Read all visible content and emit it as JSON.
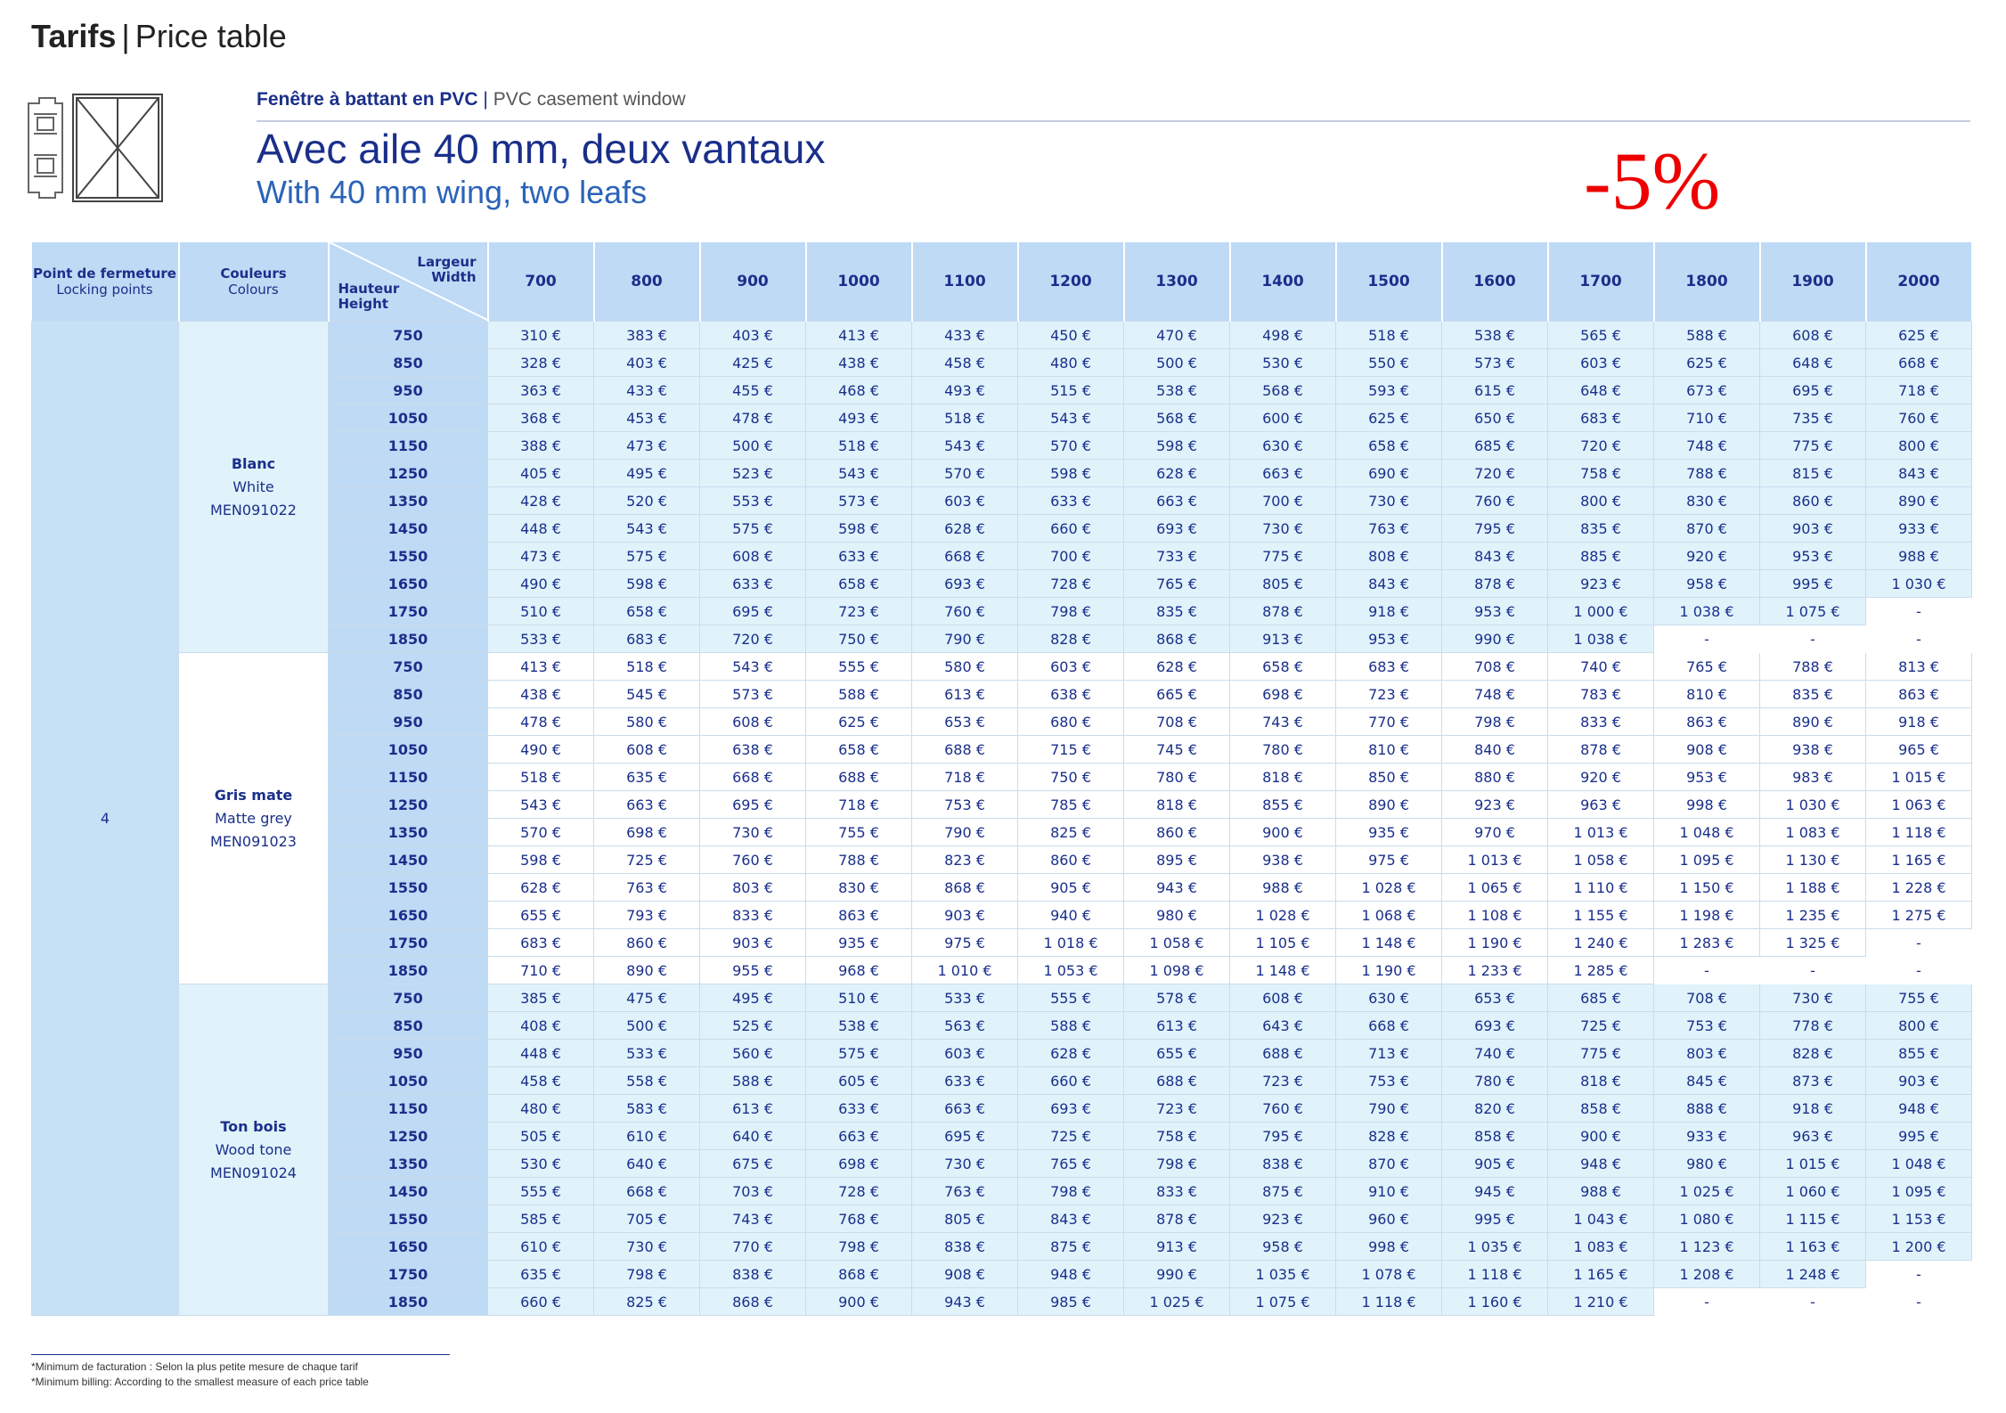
{
  "header": {
    "title_bold": "Tarifs",
    "separator": "|",
    "title_light": "Price table"
  },
  "product": {
    "line_fr": "Fenêtre à battant en PVC",
    "line_sep": "|",
    "line_en": "PVC casement window",
    "title_fr": "Avec aile 40 mm, deux vantaux",
    "title_en": "With 40 mm wing, two leafs",
    "discount": "-5%"
  },
  "colors": {
    "accent": "#1a2f8a",
    "header_bg": "#bfdaf5",
    "row_tint": "#e0f3fb",
    "discount": "#ee0000"
  },
  "table": {
    "headers": {
      "locking_fr": "Point de fermeture",
      "locking_en": "Locking points",
      "color_fr": "Couleurs",
      "color_en": "Colours",
      "width_fr": "Largeur",
      "width_en": "Width",
      "height_fr": "Hauteur",
      "height_en": "Height"
    },
    "widths": [
      "700",
      "800",
      "900",
      "1000",
      "1100",
      "1200",
      "1300",
      "1400",
      "1500",
      "1600",
      "1700",
      "1800",
      "1900",
      "2000"
    ],
    "locking_points": "4",
    "groups": [
      {
        "name_fr": "Blanc",
        "name_en": "White",
        "code": "MEN091022",
        "rows": [
          {
            "h": "750",
            "p": [
              "310 €",
              "383 €",
              "403 €",
              "413 €",
              "433 €",
              "450 €",
              "470 €",
              "498 €",
              "518 €",
              "538 €",
              "565 €",
              "588 €",
              "608 €",
              "625 €"
            ]
          },
          {
            "h": "850",
            "p": [
              "328 €",
              "403 €",
              "425 €",
              "438 €",
              "458 €",
              "480 €",
              "500 €",
              "530 €",
              "550 €",
              "573 €",
              "603 €",
              "625 €",
              "648 €",
              "668 €"
            ]
          },
          {
            "h": "950",
            "p": [
              "363 €",
              "433 €",
              "455 €",
              "468 €",
              "493 €",
              "515 €",
              "538 €",
              "568 €",
              "593 €",
              "615 €",
              "648 €",
              "673 €",
              "695 €",
              "718 €"
            ]
          },
          {
            "h": "1050",
            "p": [
              "368 €",
              "453 €",
              "478 €",
              "493 €",
              "518 €",
              "543 €",
              "568 €",
              "600 €",
              "625 €",
              "650 €",
              "683 €",
              "710 €",
              "735 €",
              "760 €"
            ]
          },
          {
            "h": "1150",
            "p": [
              "388 €",
              "473 €",
              "500 €",
              "518 €",
              "543 €",
              "570 €",
              "598 €",
              "630 €",
              "658 €",
              "685 €",
              "720 €",
              "748 €",
              "775 €",
              "800 €"
            ]
          },
          {
            "h": "1250",
            "p": [
              "405 €",
              "495 €",
              "523 €",
              "543 €",
              "570 €",
              "598 €",
              "628 €",
              "663 €",
              "690 €",
              "720 €",
              "758 €",
              "788 €",
              "815 €",
              "843 €"
            ]
          },
          {
            "h": "1350",
            "p": [
              "428 €",
              "520 €",
              "553 €",
              "573 €",
              "603 €",
              "633 €",
              "663 €",
              "700 €",
              "730 €",
              "760 €",
              "800 €",
              "830 €",
              "860 €",
              "890 €"
            ]
          },
          {
            "h": "1450",
            "p": [
              "448 €",
              "543 €",
              "575 €",
              "598 €",
              "628 €",
              "660 €",
              "693 €",
              "730 €",
              "763 €",
              "795 €",
              "835 €",
              "870 €",
              "903 €",
              "933 €"
            ]
          },
          {
            "h": "1550",
            "p": [
              "473 €",
              "575 €",
              "608 €",
              "633 €",
              "668 €",
              "700 €",
              "733 €",
              "775 €",
              "808 €",
              "843 €",
              "885 €",
              "920 €",
              "953 €",
              "988 €"
            ]
          },
          {
            "h": "1650",
            "p": [
              "490 €",
              "598 €",
              "633 €",
              "658 €",
              "693 €",
              "728 €",
              "765 €",
              "805 €",
              "843 €",
              "878 €",
              "923 €",
              "958 €",
              "995 €",
              "1 030 €"
            ]
          },
          {
            "h": "1750",
            "p": [
              "510 €",
              "658 €",
              "695 €",
              "723 €",
              "760 €",
              "798 €",
              "835 €",
              "878 €",
              "918 €",
              "953 €",
              "1 000 €",
              "1 038 €",
              "1 075 €",
              "-"
            ]
          },
          {
            "h": "1850",
            "p": [
              "533 €",
              "683 €",
              "720 €",
              "750 €",
              "790 €",
              "828 €",
              "868 €",
              "913 €",
              "953 €",
              "990 €",
              "1 038 €",
              "-",
              "-",
              "-"
            ]
          }
        ]
      },
      {
        "name_fr": "Gris mate",
        "name_en": "Matte grey",
        "code": "MEN091023",
        "rows": [
          {
            "h": "750",
            "p": [
              "413 €",
              "518 €",
              "543 €",
              "555 €",
              "580 €",
              "603 €",
              "628 €",
              "658 €",
              "683 €",
              "708 €",
              "740 €",
              "765 €",
              "788 €",
              "813 €"
            ]
          },
          {
            "h": "850",
            "p": [
              "438 €",
              "545 €",
              "573 €",
              "588 €",
              "613 €",
              "638 €",
              "665 €",
              "698 €",
              "723 €",
              "748 €",
              "783 €",
              "810 €",
              "835 €",
              "863 €"
            ]
          },
          {
            "h": "950",
            "p": [
              "478 €",
              "580 €",
              "608 €",
              "625 €",
              "653 €",
              "680 €",
              "708 €",
              "743 €",
              "770 €",
              "798 €",
              "833 €",
              "863 €",
              "890 €",
              "918 €"
            ]
          },
          {
            "h": "1050",
            "p": [
              "490 €",
              "608 €",
              "638 €",
              "658 €",
              "688 €",
              "715 €",
              "745 €",
              "780 €",
              "810 €",
              "840 €",
              "878 €",
              "908 €",
              "938 €",
              "965 €"
            ]
          },
          {
            "h": "1150",
            "p": [
              "518 €",
              "635 €",
              "668 €",
              "688 €",
              "718 €",
              "750 €",
              "780 €",
              "818 €",
              "850 €",
              "880 €",
              "920 €",
              "953 €",
              "983 €",
              "1 015 €"
            ]
          },
          {
            "h": "1250",
            "p": [
              "543 €",
              "663 €",
              "695 €",
              "718 €",
              "753 €",
              "785 €",
              "818 €",
              "855 €",
              "890 €",
              "923 €",
              "963 €",
              "998 €",
              "1 030 €",
              "1 063 €"
            ]
          },
          {
            "h": "1350",
            "p": [
              "570 €",
              "698 €",
              "730 €",
              "755 €",
              "790 €",
              "825 €",
              "860 €",
              "900 €",
              "935 €",
              "970 €",
              "1 013 €",
              "1 048 €",
              "1 083 €",
              "1 118 €"
            ]
          },
          {
            "h": "1450",
            "p": [
              "598 €",
              "725 €",
              "760 €",
              "788 €",
              "823 €",
              "860 €",
              "895 €",
              "938 €",
              "975 €",
              "1 013 €",
              "1 058 €",
              "1 095 €",
              "1 130 €",
              "1 165 €"
            ]
          },
          {
            "h": "1550",
            "p": [
              "628 €",
              "763 €",
              "803 €",
              "830 €",
              "868 €",
              "905 €",
              "943 €",
              "988 €",
              "1 028 €",
              "1 065 €",
              "1 110 €",
              "1 150 €",
              "1 188 €",
              "1 228 €"
            ]
          },
          {
            "h": "1650",
            "p": [
              "655 €",
              "793 €",
              "833 €",
              "863 €",
              "903 €",
              "940 €",
              "980 €",
              "1 028 €",
              "1 068 €",
              "1 108 €",
              "1 155 €",
              "1 198 €",
              "1 235 €",
              "1 275 €"
            ]
          },
          {
            "h": "1750",
            "p": [
              "683 €",
              "860 €",
              "903 €",
              "935 €",
              "975 €",
              "1 018 €",
              "1 058 €",
              "1 105 €",
              "1 148 €",
              "1 190 €",
              "1 240 €",
              "1 283 €",
              "1 325 €",
              "-"
            ]
          },
          {
            "h": "1850",
            "p": [
              "710 €",
              "890 €",
              "955 €",
              "968 €",
              "1 010 €",
              "1 053 €",
              "1 098 €",
              "1 148 €",
              "1 190 €",
              "1 233 €",
              "1 285 €",
              "-",
              "-",
              "-"
            ]
          }
        ]
      },
      {
        "name_fr": "Ton bois",
        "name_en": "Wood tone",
        "code": "MEN091024",
        "rows": [
          {
            "h": "750",
            "p": [
              "385 €",
              "475 €",
              "495 €",
              "510 €",
              "533 €",
              "555 €",
              "578 €",
              "608 €",
              "630 €",
              "653 €",
              "685 €",
              "708 €",
              "730 €",
              "755 €"
            ]
          },
          {
            "h": "850",
            "p": [
              "408 €",
              "500 €",
              "525 €",
              "538 €",
              "563 €",
              "588 €",
              "613 €",
              "643 €",
              "668 €",
              "693 €",
              "725 €",
              "753 €",
              "778 €",
              "800 €"
            ]
          },
          {
            "h": "950",
            "p": [
              "448 €",
              "533 €",
              "560 €",
              "575 €",
              "603 €",
              "628 €",
              "655 €",
              "688 €",
              "713 €",
              "740 €",
              "775 €",
              "803 €",
              "828 €",
              "855 €"
            ]
          },
          {
            "h": "1050",
            "p": [
              "458 €",
              "558 €",
              "588 €",
              "605 €",
              "633 €",
              "660 €",
              "688 €",
              "723 €",
              "753 €",
              "780 €",
              "818 €",
              "845 €",
              "873 €",
              "903 €"
            ]
          },
          {
            "h": "1150",
            "p": [
              "480 €",
              "583 €",
              "613 €",
              "633 €",
              "663 €",
              "693 €",
              "723 €",
              "760 €",
              "790 €",
              "820 €",
              "858 €",
              "888 €",
              "918 €",
              "948 €"
            ]
          },
          {
            "h": "1250",
            "p": [
              "505 €",
              "610 €",
              "640 €",
              "663 €",
              "695 €",
              "725 €",
              "758 €",
              "795 €",
              "828 €",
              "858 €",
              "900 €",
              "933 €",
              "963 €",
              "995 €"
            ]
          },
          {
            "h": "1350",
            "p": [
              "530 €",
              "640 €",
              "675 €",
              "698 €",
              "730 €",
              "765 €",
              "798 €",
              "838 €",
              "870 €",
              "905 €",
              "948 €",
              "980 €",
              "1 015 €",
              "1 048 €"
            ]
          },
          {
            "h": "1450",
            "p": [
              "555 €",
              "668 €",
              "703 €",
              "728 €",
              "763 €",
              "798 €",
              "833 €",
              "875 €",
              "910 €",
              "945 €",
              "988 €",
              "1 025 €",
              "1 060 €",
              "1 095 €"
            ]
          },
          {
            "h": "1550",
            "p": [
              "585 €",
              "705 €",
              "743 €",
              "768 €",
              "805 €",
              "843 €",
              "878 €",
              "923 €",
              "960 €",
              "995 €",
              "1 043 €",
              "1 080 €",
              "1 115 €",
              "1 153 €"
            ]
          },
          {
            "h": "1650",
            "p": [
              "610 €",
              "730 €",
              "770 €",
              "798 €",
              "838 €",
              "875 €",
              "913 €",
              "958 €",
              "998 €",
              "1 035 €",
              "1 083 €",
              "1 123 €",
              "1 163 €",
              "1 200 €"
            ]
          },
          {
            "h": "1750",
            "p": [
              "635 €",
              "798 €",
              "838 €",
              "868 €",
              "908 €",
              "948 €",
              "990 €",
              "1 035 €",
              "1 078 €",
              "1 118 €",
              "1 165 €",
              "1 208 €",
              "1 248 €",
              "-"
            ]
          },
          {
            "h": "1850",
            "p": [
              "660 €",
              "825 €",
              "868 €",
              "900 €",
              "943 €",
              "985 €",
              "1 025 €",
              "1 075 €",
              "1 118 €",
              "1 160 €",
              "1 210 €",
              "-",
              "-",
              "-"
            ]
          }
        ]
      }
    ]
  },
  "footnote": {
    "line_fr": "*Minimum de facturation : Selon la plus petite mesure de chaque tarif",
    "line_en": "*Minimum billing: According to the smallest measure of each price table"
  }
}
